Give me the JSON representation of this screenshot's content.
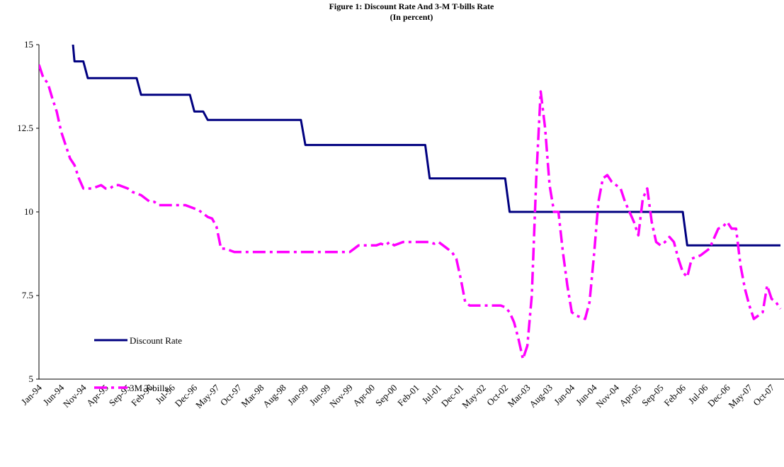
{
  "chart_data": {
    "type": "line",
    "title": "Figure 1: Discount Rate And 3-M T-bills Rate",
    "subtitle": "(In percent)",
    "categories": [
      "Jan-94",
      null,
      null,
      null,
      null,
      "Jun-94",
      null,
      null,
      null,
      null,
      "Nov-94",
      null,
      null,
      null,
      null,
      "Apr-95",
      null,
      null,
      null,
      null,
      "Sep-95",
      null,
      null,
      null,
      null,
      "Feb-96",
      null,
      null,
      null,
      null,
      "Jul-96",
      null,
      null,
      null,
      null,
      "Dec-96",
      null,
      null,
      null,
      null,
      "May-97",
      null,
      null,
      null,
      null,
      "Oct-97",
      null,
      null,
      null,
      null,
      "Mar-98",
      null,
      null,
      null,
      null,
      "Aug-98",
      null,
      null,
      null,
      null,
      "Jan-99",
      null,
      null,
      null,
      null,
      "Jun-99",
      null,
      null,
      null,
      null,
      "Nov-99",
      null,
      null,
      null,
      null,
      "Apr-00",
      null,
      null,
      null,
      null,
      "Sep-00",
      null,
      null,
      null,
      null,
      "Feb-01",
      null,
      null,
      null,
      null,
      "Jul-01",
      null,
      null,
      null,
      null,
      "Dec-01",
      null,
      null,
      null,
      null,
      "May-02",
      null,
      null,
      null,
      null,
      "Oct-02",
      null,
      null,
      null,
      null,
      "Mar-03",
      null,
      null,
      null,
      null,
      "Aug-03",
      null,
      null,
      null,
      null,
      "Jan-04",
      null,
      null,
      null,
      null,
      "Jun-04",
      null,
      null,
      null,
      null,
      "Nov-04",
      null,
      null,
      null,
      null,
      "Apr-05",
      null,
      null,
      null,
      null,
      "Sep-05",
      null,
      null,
      null,
      null,
      "Feb-06",
      null,
      null,
      null,
      null,
      "Jul-06",
      null,
      null,
      null,
      null,
      "Dec-06",
      null,
      null,
      null,
      null,
      "May-07",
      null,
      null,
      null,
      null,
      "Oct-07",
      null,
      null
    ],
    "series": [
      {
        "name": "Discount Rate",
        "color": "#000080",
        "dash": false,
        "values": [
          16,
          16,
          16,
          16,
          16,
          16,
          16,
          16,
          14.5,
          14.5,
          14.5,
          14,
          14,
          14,
          14,
          14,
          14,
          14,
          14,
          14,
          14,
          14,
          14,
          13.5,
          13.5,
          13.5,
          13.5,
          13.5,
          13.5,
          13.5,
          13.5,
          13.5,
          13.5,
          13.5,
          13.5,
          13,
          13,
          13,
          12.75,
          12.75,
          12.75,
          12.75,
          12.75,
          12.75,
          12.75,
          12.75,
          12.75,
          12.75,
          12.75,
          12.75,
          12.75,
          12.75,
          12.75,
          12.75,
          12.75,
          12.75,
          12.75,
          12.75,
          12.75,
          12.75,
          12,
          12,
          12,
          12,
          12,
          12,
          12,
          12,
          12,
          12,
          12,
          12,
          12,
          12,
          12,
          12,
          12,
          12,
          12,
          12,
          12,
          12,
          12,
          12,
          12,
          12,
          12,
          12,
          11,
          11,
          11,
          11,
          11,
          11,
          11,
          11,
          11,
          11,
          11,
          11,
          11,
          11,
          11,
          11,
          11,
          11,
          10,
          10,
          10,
          10,
          10,
          10,
          10,
          10,
          10,
          10,
          10,
          10,
          10,
          10,
          10,
          10,
          10,
          10,
          10,
          10,
          10,
          10,
          10,
          10,
          10,
          10,
          10,
          10,
          10,
          10,
          10,
          10,
          10,
          10,
          10,
          10,
          10,
          10,
          10,
          10,
          9,
          9,
          9,
          9,
          9,
          9,
          9,
          9,
          9,
          9,
          9,
          9,
          9,
          9,
          9,
          9,
          9,
          9,
          9,
          9,
          9,
          9
        ]
      },
      {
        "name": "3M T-bills",
        "color": "#ff00ff",
        "dash": true,
        "values": [
          14.4,
          14.0,
          13.85,
          13.4,
          13.0,
          12.4,
          12.0,
          11.6,
          11.4,
          11.0,
          10.7,
          10.7,
          10.7,
          10.75,
          10.8,
          10.7,
          10.7,
          10.8,
          10.8,
          10.75,
          10.7,
          10.6,
          10.55,
          10.5,
          10.4,
          10.3,
          10.3,
          10.2,
          10.2,
          10.2,
          10.2,
          10.2,
          10.2,
          10.2,
          10.15,
          10.1,
          10.05,
          9.95,
          9.85,
          9.8,
          9.55,
          8.9,
          8.9,
          8.85,
          8.8,
          8.8,
          8.8,
          8.8,
          8.8,
          8.8,
          8.8,
          8.8,
          8.8,
          8.8,
          8.8,
          8.8,
          8.8,
          8.8,
          8.8,
          8.8,
          8.8,
          8.8,
          8.8,
          8.8,
          8.8,
          8.8,
          8.8,
          8.8,
          8.8,
          8.8,
          8.8,
          8.9,
          9.0,
          9.0,
          9.0,
          9.0,
          9.0,
          9.05,
          9.0,
          9.1,
          9.0,
          9.05,
          9.1,
          9.1,
          9.1,
          9.1,
          9.1,
          9.1,
          9.1,
          9.05,
          9.1,
          9.0,
          8.9,
          8.8,
          8.6,
          8.0,
          7.3,
          7.2,
          7.2,
          7.2,
          7.2,
          7.2,
          7.2,
          7.2,
          7.2,
          7.15,
          7.0,
          6.7,
          6.2,
          5.6,
          6.0,
          7.5,
          11.0,
          13.6,
          12.5,
          10.8,
          10.0,
          10.0,
          8.8,
          7.8,
          7.0,
          6.9,
          6.85,
          6.8,
          7.3,
          8.7,
          10.3,
          11.0,
          11.1,
          10.9,
          10.8,
          10.7,
          10.3,
          10.0,
          9.7,
          9.3,
          10.4,
          10.7,
          9.7,
          9.1,
          9.0,
          9.1,
          9.25,
          9.1,
          8.6,
          8.2,
          8.05,
          8.6,
          8.65,
          8.7,
          8.8,
          8.9,
          9.2,
          9.5,
          9.55,
          9.7,
          9.5,
          9.5,
          8.4,
          7.7,
          7.2,
          6.8,
          6.9,
          7.0,
          7.8,
          7.4,
          7.3,
          7.1
        ]
      }
    ],
    "ylim": [
      5,
      15
    ],
    "yticks": [
      5,
      7.5,
      10,
      12.5,
      15
    ],
    "grid": false
  }
}
